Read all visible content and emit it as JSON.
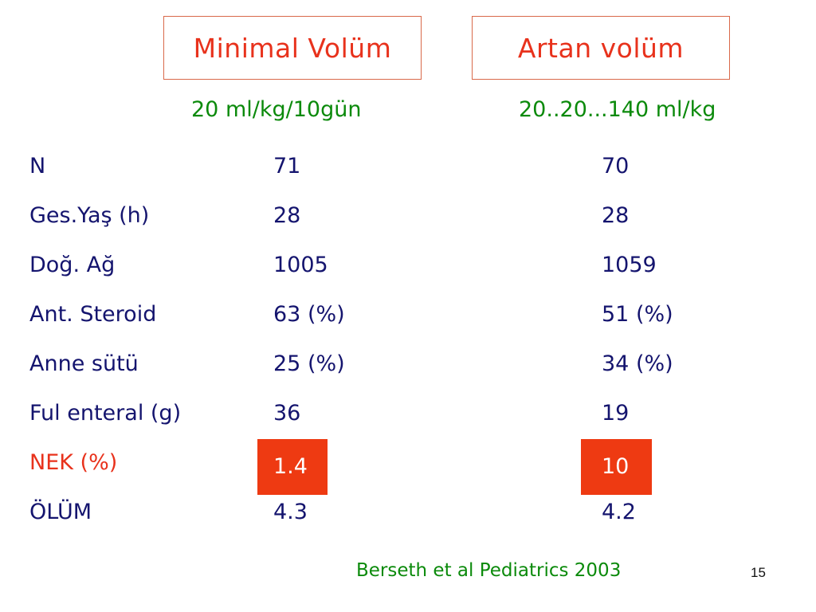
{
  "headers": {
    "left": "Minimal Volüm",
    "right": "Artan volüm"
  },
  "doses": {
    "left": "20 ml/kg/10gün",
    "right": "20..20...140 ml/kg"
  },
  "rows": [
    {
      "label": "N",
      "a": "71",
      "b": "70"
    },
    {
      "label": "Ges.Yaş (h)",
      "a": "28",
      "b": "28"
    },
    {
      "label": "Doğ. Ağ",
      "a": "1005",
      "b": "1059"
    },
    {
      "label": "Ant. Steroid",
      "a": "63 (%)",
      "b": "51 (%)"
    },
    {
      "label": "Anne sütü",
      "a": "25 (%)",
      "b": "34 (%)"
    },
    {
      "label": "Ful enteral (g)",
      "a": "36",
      "b": "19"
    },
    {
      "label": "NEK (%)",
      "a": "1.4",
      "b": "10"
    },
    {
      "label": "ÖLÜM",
      "a": "4.3",
      "b": "4.2"
    }
  ],
  "citation": "Berseth et al Pediatrics 2003",
  "page_number": "15",
  "colors": {
    "heading_red": "#e8321c",
    "dose_green": "#0b8a0b",
    "body_navy": "#14146e",
    "highlight_fill": "#ee3a12"
  }
}
